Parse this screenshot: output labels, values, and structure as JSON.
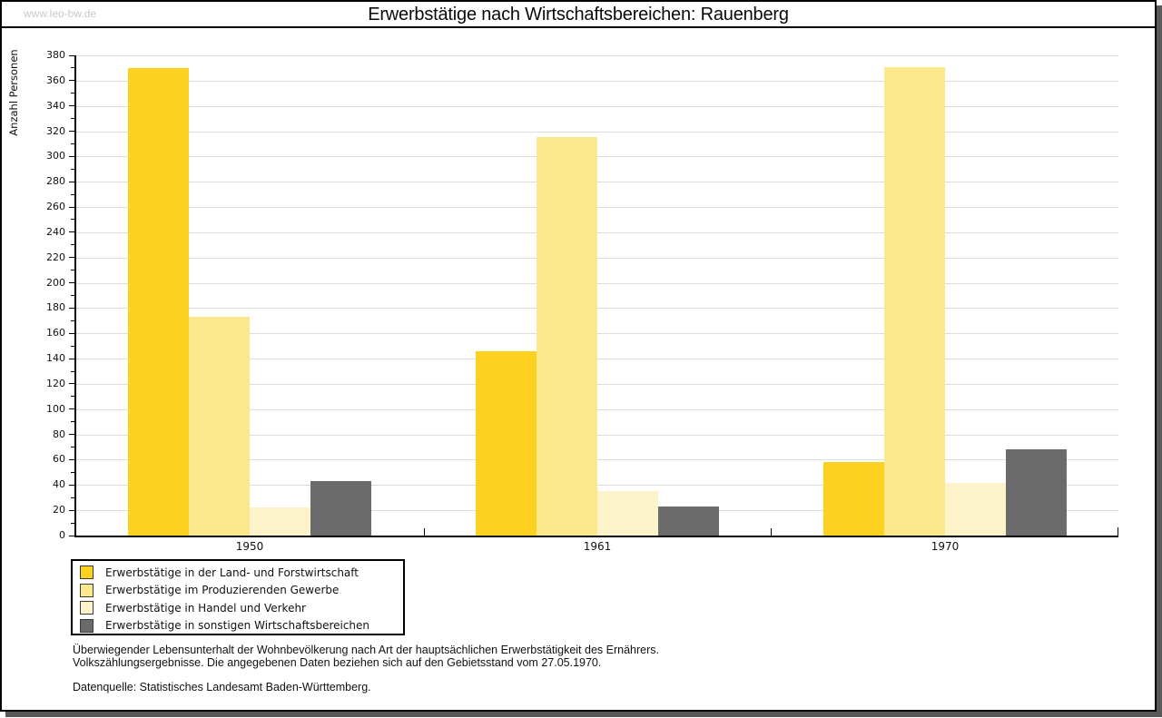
{
  "header": {
    "watermark": "www.leo-bw.de"
  },
  "chart_data": {
    "type": "bar",
    "title": "Erwerbstätige nach Wirtschaftsbereichen: Rauenberg",
    "ylabel": "Anzahl Personen",
    "xlabel": "",
    "categories": [
      "1950",
      "1961",
      "1970"
    ],
    "series": [
      {
        "name": "Erwerbstätige in der Land- und Forstwirtschaft",
        "color": "#FCD11F",
        "values": [
          370,
          146,
          58
        ]
      },
      {
        "name": "Erwerbstätige im Produzierenden Gewerbe",
        "color": "#FBE78C",
        "values": [
          173,
          315,
          371
        ]
      },
      {
        "name": "Erwerbstätige in Handel und Verkehr",
        "color": "#FCF3CB",
        "values": [
          22,
          35,
          42
        ]
      },
      {
        "name": "Erwerbstätige in sonstigen Wirtschaftsbereichen",
        "color": "#6B6B6B",
        "values": [
          43,
          23,
          68
        ]
      }
    ],
    "ylim": [
      0,
      380
    ],
    "ytick_step": 20,
    "ytick_minor_step": 10,
    "grid": true,
    "legend_position": "bottom-left"
  },
  "colors": {
    "grid_line": "#DCDCDC",
    "axis": "#000000",
    "watermark_text": "#C9C9C9",
    "drop_shadow": "#585858",
    "swatch_border": "#3A3A3A"
  },
  "notes": {
    "line1": "Überwiegender Lebensunterhalt der Wohnbevölkerung nach Art der hauptsächlichen Erwerbstätigkeit des Ernährers.",
    "line2": "Volkszählungsergebnisse. Die angegebenen Daten beziehen sich auf den Gebietsstand vom 27.05.1970.",
    "source": "Datenquelle: Statistisches Landesamt Baden-Württemberg."
  }
}
